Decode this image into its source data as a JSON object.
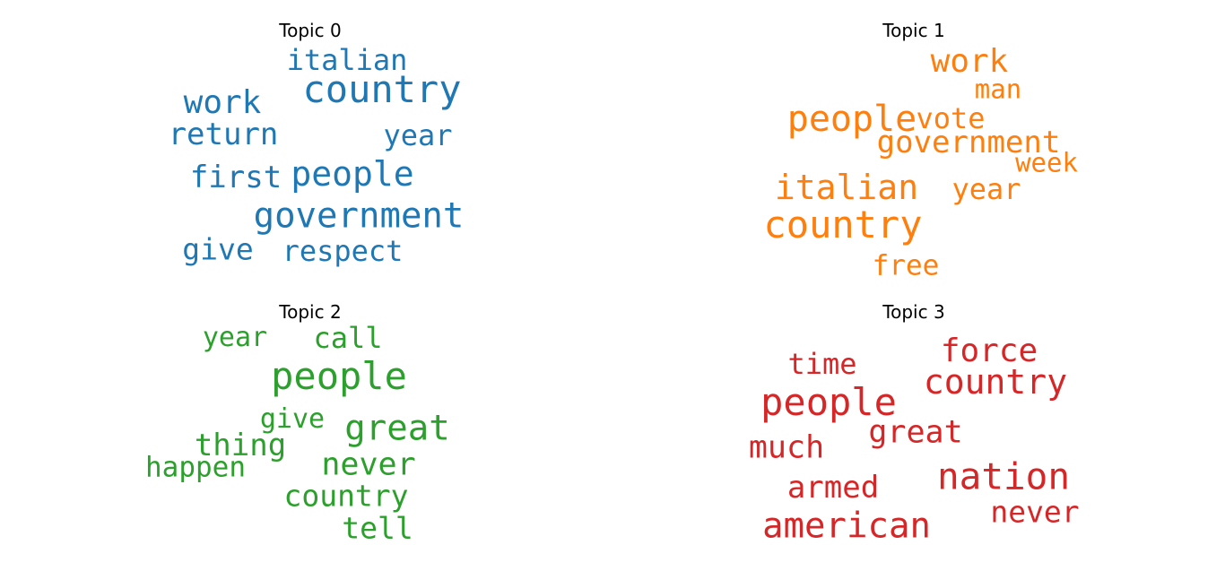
{
  "chart_data": [
    {
      "type": "wordcloud",
      "title": "Topic 0",
      "color": "#1f77b4",
      "words": [
        {
          "text": "country",
          "weight": 1.0
        },
        {
          "text": "government",
          "weight": 0.88
        },
        {
          "text": "people",
          "weight": 0.85
        },
        {
          "text": "work",
          "weight": 0.78
        },
        {
          "text": "italian",
          "weight": 0.62
        },
        {
          "text": "return",
          "weight": 0.7
        },
        {
          "text": "first",
          "weight": 0.68
        },
        {
          "text": "year",
          "weight": 0.6
        },
        {
          "text": "give",
          "weight": 0.66
        },
        {
          "text": "respect",
          "weight": 0.62
        }
      ]
    },
    {
      "type": "wordcloud",
      "title": "Topic 1",
      "color": "#ff7f0e",
      "words": [
        {
          "text": "country",
          "weight": 1.0
        },
        {
          "text": "people",
          "weight": 0.92
        },
        {
          "text": "italian",
          "weight": 0.85
        },
        {
          "text": "work",
          "weight": 0.76
        },
        {
          "text": "government",
          "weight": 0.68
        },
        {
          "text": "vote",
          "weight": 0.6
        },
        {
          "text": "year",
          "weight": 0.6
        },
        {
          "text": "man",
          "weight": 0.5
        },
        {
          "text": "week",
          "weight": 0.5
        },
        {
          "text": "free",
          "weight": 0.58
        }
      ]
    },
    {
      "type": "wordcloud",
      "title": "Topic 2",
      "color": "#2ca02c",
      "words": [
        {
          "text": "people",
          "weight": 1.0
        },
        {
          "text": "great",
          "weight": 0.9
        },
        {
          "text": "never",
          "weight": 0.72
        },
        {
          "text": "call",
          "weight": 0.6
        },
        {
          "text": "year",
          "weight": 0.55
        },
        {
          "text": "give",
          "weight": 0.55
        },
        {
          "text": "thing",
          "weight": 0.68
        },
        {
          "text": "happen",
          "weight": 0.58
        },
        {
          "text": "country",
          "weight": 0.64
        },
        {
          "text": "tell",
          "weight": 0.66
        }
      ]
    },
    {
      "type": "wordcloud",
      "title": "Topic 3",
      "color": "#d62728",
      "words": [
        {
          "text": "people",
          "weight": 1.0
        },
        {
          "text": "nation",
          "weight": 0.95
        },
        {
          "text": "american",
          "weight": 0.88
        },
        {
          "text": "country",
          "weight": 0.85
        },
        {
          "text": "force",
          "weight": 0.78
        },
        {
          "text": "much",
          "weight": 0.72
        },
        {
          "text": "great",
          "weight": 0.72
        },
        {
          "text": "armed",
          "weight": 0.68
        },
        {
          "text": "time",
          "weight": 0.62
        },
        {
          "text": "never",
          "weight": 0.64
        }
      ]
    }
  ]
}
